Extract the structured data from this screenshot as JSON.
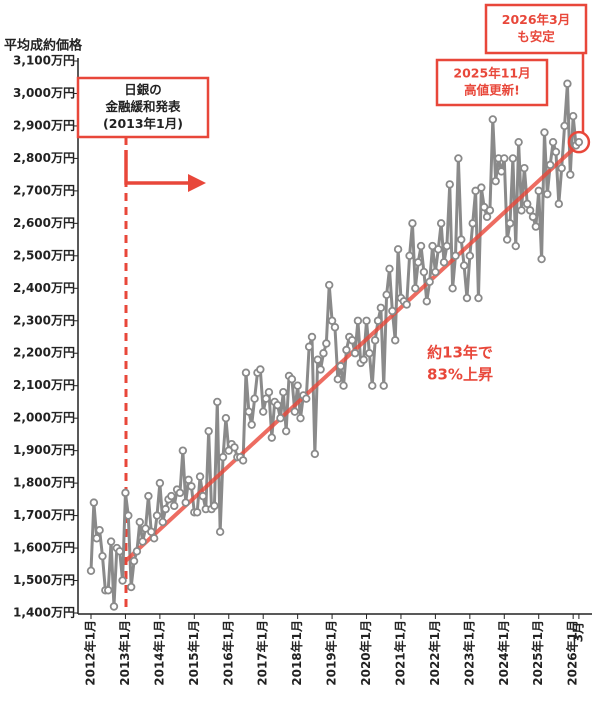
{
  "chart_data": {
    "type": "line",
    "ylabel": "平均成約価格",
    "categories": [
      "2012年1月",
      null,
      null,
      null,
      null,
      null,
      null,
      null,
      null,
      null,
      null,
      null,
      "2013年1月",
      null,
      null,
      null,
      null,
      null,
      null,
      null,
      null,
      null,
      null,
      null,
      "2014年1月",
      null,
      null,
      null,
      null,
      null,
      null,
      null,
      null,
      null,
      null,
      null,
      "2015年1月",
      null,
      null,
      null,
      null,
      null,
      null,
      null,
      null,
      null,
      null,
      null,
      "2016年1月",
      null,
      null,
      null,
      null,
      null,
      null,
      null,
      null,
      null,
      null,
      null,
      "2017年1月",
      null,
      null,
      null,
      null,
      null,
      null,
      null,
      null,
      null,
      null,
      null,
      "2018年1月",
      null,
      null,
      null,
      null,
      null,
      null,
      null,
      null,
      null,
      null,
      null,
      "2019年1月",
      null,
      null,
      null,
      null,
      null,
      null,
      null,
      null,
      null,
      null,
      null,
      "2020年1月",
      null,
      null,
      null,
      null,
      null,
      null,
      null,
      null,
      null,
      null,
      null,
      "2021年1月",
      null,
      null,
      null,
      null,
      null,
      null,
      null,
      null,
      null,
      null,
      null,
      "2022年1月",
      null,
      null,
      null,
      null,
      null,
      null,
      null,
      null,
      null,
      null,
      null,
      "2023年1月",
      null,
      null,
      null,
      null,
      null,
      null,
      null,
      null,
      null,
      null,
      null,
      "2024年1月",
      null,
      null,
      null,
      null,
      null,
      null,
      null,
      null,
      null,
      null,
      null,
      "2025年1月",
      null,
      null,
      null,
      null,
      null,
      null,
      null,
      null,
      null,
      null,
      null,
      "2026年1月",
      null,
      "3月"
    ],
    "series": [
      {
        "color": "#8a8a8a",
        "values": [
          1530,
          1740,
          1630,
          1655,
          1575,
          1470,
          1470,
          1620,
          1420,
          1600,
          1590,
          1500,
          1770,
          1700,
          1480,
          1560,
          1590,
          1680,
          1620,
          1660,
          1760,
          1650,
          1630,
          1700,
          1800,
          1680,
          1720,
          1750,
          1760,
          1730,
          1780,
          1770,
          1900,
          1740,
          1810,
          1790,
          1710,
          1710,
          1820,
          1760,
          1720,
          1960,
          1720,
          1730,
          2050,
          1650,
          1880,
          2000,
          1900,
          1920,
          1910,
          1880,
          1880,
          1870,
          2140,
          2020,
          1980,
          2060,
          2140,
          2150,
          2020,
          2060,
          2080,
          1940,
          2050,
          2040,
          2000,
          2080,
          1960,
          2130,
          2120,
          2020,
          2100,
          2000,
          2070,
          2060,
          2220,
          2250,
          1890,
          2180,
          2150,
          2200,
          2230,
          2410,
          2300,
          2280,
          2120,
          2160,
          2100,
          2210,
          2250,
          2240,
          2200,
          2300,
          2170,
          2180,
          2300,
          2200,
          2100,
          2240,
          2300,
          2340,
          2100,
          2380,
          2460,
          2330,
          2240,
          2520,
          2370,
          2360,
          2350,
          2500,
          2600,
          2400,
          2480,
          2530,
          2450,
          2360,
          2420,
          2530,
          2450,
          2520,
          2600,
          2480,
          2530,
          2720,
          2400,
          2500,
          2800,
          2550,
          2470,
          2370,
          2500,
          2600,
          2700,
          2370,
          2710,
          2650,
          2620,
          2640,
          2920,
          2730,
          2800,
          2760,
          2800,
          2550,
          2600,
          2800,
          2530,
          2850,
          2640,
          2770,
          2660,
          2640,
          2620,
          2590,
          2700,
          2490,
          2880,
          2690,
          2780,
          2850,
          2820,
          2660,
          2770,
          2900,
          3030,
          2750,
          2930,
          2840,
          2850
        ]
      }
    ],
    "trend": {
      "color": "#e8473a",
      "start_index": 12,
      "start_value": 1560,
      "end_index": 170,
      "end_value": 2845
    },
    "ylim": [
      1400,
      3100
    ],
    "yticks": [
      {
        "value": 1400,
        "label": "1,400万円"
      },
      {
        "value": 1500,
        "label": "1,500万円"
      },
      {
        "value": 1600,
        "label": "1,600万円"
      },
      {
        "value": 1700,
        "label": "1,700万円"
      },
      {
        "value": 1800,
        "label": "1,800万円"
      },
      {
        "value": 1900,
        "label": "1,900万円"
      },
      {
        "value": 2000,
        "label": "2,000万円"
      },
      {
        "value": 2100,
        "label": "2,100万円"
      },
      {
        "value": 2200,
        "label": "2,200万円"
      },
      {
        "value": 2300,
        "label": "2,300万円"
      },
      {
        "value": 2400,
        "label": "2,400万円"
      },
      {
        "value": 2500,
        "label": "2,500万円"
      },
      {
        "value": 2600,
        "label": "2,600万円"
      },
      {
        "value": 2700,
        "label": "2,700万円"
      },
      {
        "value": 2800,
        "label": "2,800万円"
      },
      {
        "value": 2900,
        "label": "2,900万円"
      },
      {
        "value": 3000,
        "label": "3,000万円"
      },
      {
        "value": 3100,
        "label": "3,100万円"
      }
    ],
    "annotations": [
      {
        "lines": [
          "日銀の",
          "金融緩和発表",
          "(2013年1月)"
        ]
      },
      {
        "lines": [
          "2026年3月",
          "も安定"
        ]
      },
      {
        "lines": [
          "2025年11月",
          "高値更新!"
        ]
      },
      {
        "lines": [
          "約13年で",
          "83%上昇"
        ]
      }
    ]
  }
}
